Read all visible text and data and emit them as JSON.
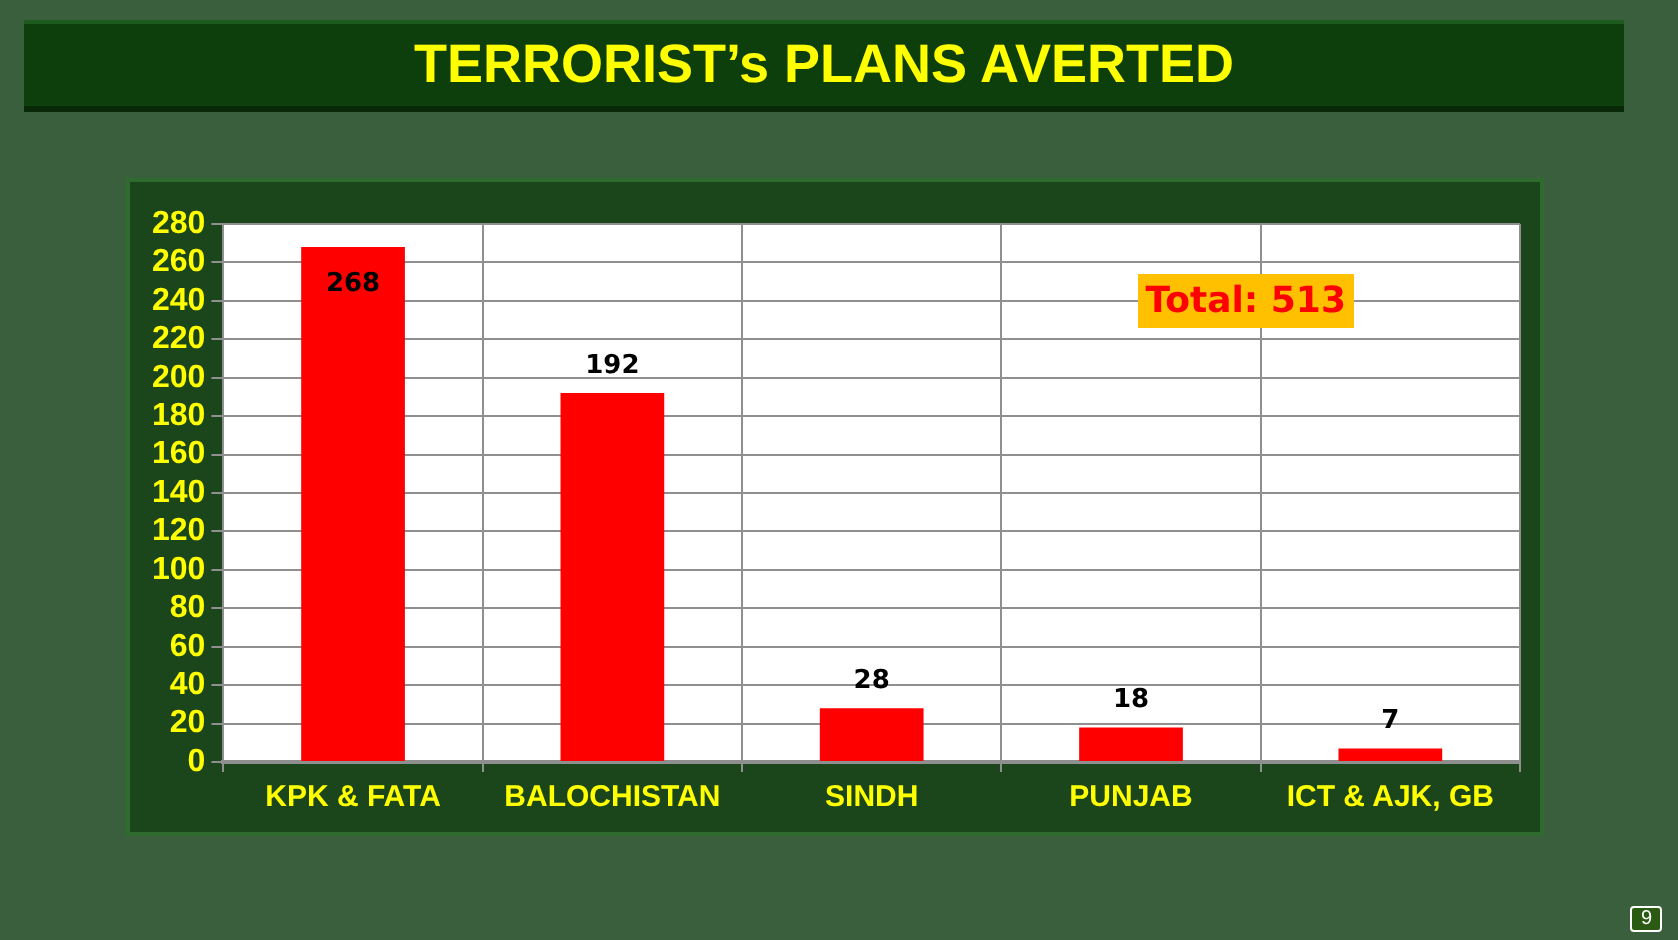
{
  "chart_data": {
    "type": "bar",
    "title": "TERRORIST’s PLANS AVERTED",
    "categories": [
      "KPK & FATA",
      "BALOCHISTAN",
      "SINDH",
      "PUNJAB",
      "ICT & AJK, GB"
    ],
    "values": [
      268,
      192,
      28,
      18,
      7
    ],
    "color": "#ff0000",
    "ylim": [
      0,
      280
    ],
    "yticks": [
      0,
      20,
      40,
      60,
      80,
      100,
      120,
      140,
      160,
      180,
      200,
      220,
      240,
      260,
      280
    ],
    "grid": true,
    "data_labels": true,
    "annotations": [
      "Total: 513",
      "9"
    ]
  }
}
